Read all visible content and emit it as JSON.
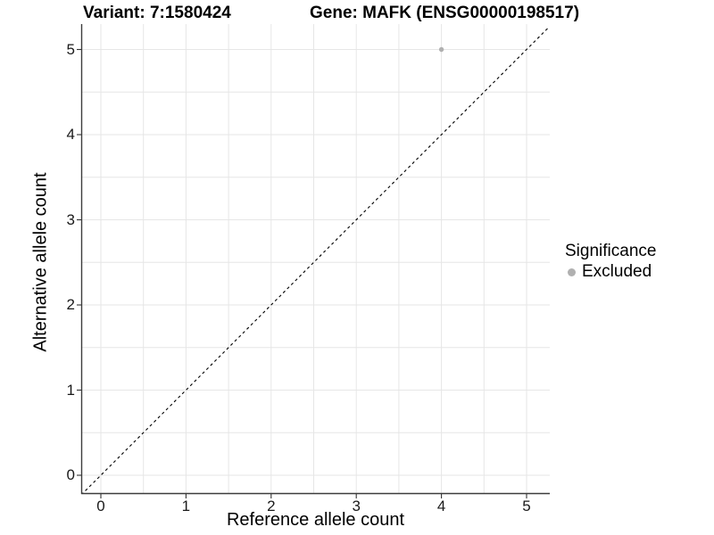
{
  "header": {
    "variant_title": "Variant: 7:1580424",
    "gene_title": "Gene: MAFK (ENSG00000198517)"
  },
  "chart_data": {
    "type": "scatter",
    "titles": {
      "left": "Variant: 7:1580424",
      "right": "Gene: MAFK (ENSG00000198517)"
    },
    "xlabel": "Reference allele count",
    "ylabel": "Alternative allele count",
    "xlim": [
      -0.23,
      5.27
    ],
    "ylim": [
      -0.23,
      5.27
    ],
    "x_ticks": [
      0,
      1,
      2,
      3,
      4,
      5
    ],
    "y_ticks": [
      0,
      1,
      2,
      3,
      4,
      5
    ],
    "minor_grid_step": 0.5,
    "grid": true,
    "series": [
      {
        "name": "Excluded",
        "marker": "circle",
        "color": "#b0b0b0",
        "points": [
          {
            "x": 4,
            "y": 5
          }
        ]
      }
    ],
    "reference_line": {
      "kind": "identity",
      "equation": "y = x",
      "style": "dashed",
      "color": "#000000"
    },
    "legend": {
      "title": "Significance",
      "position": "right",
      "items": [
        {
          "label": "Excluded",
          "color": "#b0b0b0"
        }
      ]
    }
  },
  "colors": {
    "background": "#ffffff",
    "grid_major": "#e6e6e6",
    "grid_minor": "#e6e6e6",
    "axis_line": "#3c3c3c",
    "tick_mark": "#333333",
    "tick_text": "#1a1a1a",
    "point_excluded": "#b0b0b0"
  }
}
